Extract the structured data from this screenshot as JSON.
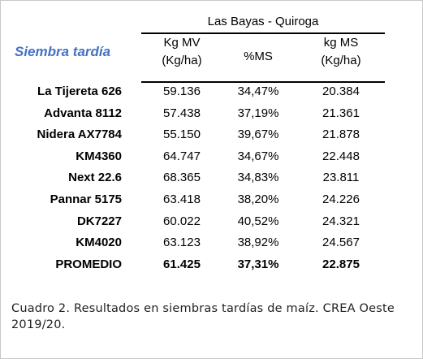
{
  "table": {
    "group_title": "Las Bayas - Quiroga",
    "section_label": "Siembra tardía",
    "headers": {
      "kgmv_line1": "Kg MV",
      "kgmv_line2": "(Kg/ha)",
      "ms": "%MS",
      "kgms_line1": "kg MS",
      "kgms_line2": "(Kg/ha)"
    },
    "rows": [
      {
        "name": "La Tijereta 626",
        "kgmv": "59.136",
        "ms": "34,47%",
        "kgms": "20.384"
      },
      {
        "name": "Advanta 8112",
        "kgmv": "57.438",
        "ms": "37,19%",
        "kgms": "21.361"
      },
      {
        "name": "Nidera AX7784",
        "kgmv": "55.150",
        "ms": "39,67%",
        "kgms": "21.878"
      },
      {
        "name": "KM4360",
        "kgmv": "64.747",
        "ms": "34,67%",
        "kgms": "22.448"
      },
      {
        "name": "Next 22.6",
        "kgmv": "68.365",
        "ms": "34,83%",
        "kgms": "23.811"
      },
      {
        "name": "Pannar 5175",
        "kgmv": "63.418",
        "ms": "38,20%",
        "kgms": "24.226"
      },
      {
        "name": "DK7227",
        "kgmv": "60.022",
        "ms": "40,52%",
        "kgms": "24.321"
      },
      {
        "name": "KM4020",
        "kgmv": "63.123",
        "ms": "38,92%",
        "kgms": "24.567"
      }
    ],
    "average": {
      "name": "PROMEDIO",
      "kgmv": "61.425",
      "ms": "37,31%",
      "kgms": "22.875"
    }
  },
  "caption": "Cuadro 2. Resultados en siembras tardías de maíz. CREA Oeste 2019/20.",
  "colors": {
    "section_label": "#4472c4",
    "rules": "#000000"
  }
}
